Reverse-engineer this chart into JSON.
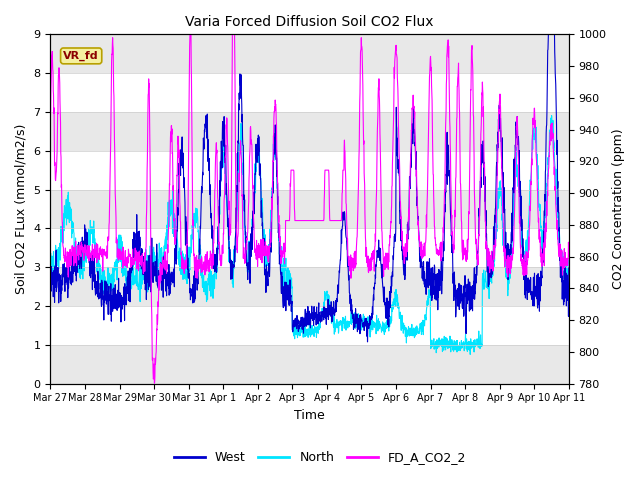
{
  "title": "Varia Forced Diffusion Soil CO2 Flux",
  "xlabel": "Time",
  "ylabel_left": "Soil CO2 FLux (mmol/m2/s)",
  "ylabel_right": "CO2 Concentration (ppm)",
  "ylim_left": [
    0.0,
    9.0
  ],
  "ylim_right": [
    780,
    1000
  ],
  "yticks_left": [
    0.0,
    1.0,
    2.0,
    3.0,
    4.0,
    5.0,
    6.0,
    7.0,
    8.0,
    9.0
  ],
  "yticks_right": [
    780,
    800,
    820,
    840,
    860,
    880,
    900,
    920,
    940,
    960,
    980,
    1000
  ],
  "xtick_labels": [
    "Mar 27",
    "Mar 28",
    "Mar 29",
    "Mar 30",
    "Mar 31",
    "Apr 1",
    "Apr 2",
    "Apr 3",
    "Apr 4",
    "Apr 5",
    "Apr 6",
    "Apr 7",
    "Apr 8",
    "Apr 9",
    "Apr 10",
    "Apr 11"
  ],
  "colors": {
    "west": "#0000cd",
    "north": "#00e5ff",
    "fd_co2": "#ff00ff"
  },
  "annotation_text": "VR_fd",
  "annotation_box_facecolor": "#f5f0a0",
  "annotation_box_edgecolor": "#b8a000",
  "annotation_text_color": "#8b0000",
  "background_color": "#ffffff",
  "band_color": "#e8e8e8",
  "legend_labels": [
    "West",
    "North",
    "FD_A_CO2_2"
  ],
  "figsize": [
    6.4,
    4.8
  ],
  "dpi": 100
}
